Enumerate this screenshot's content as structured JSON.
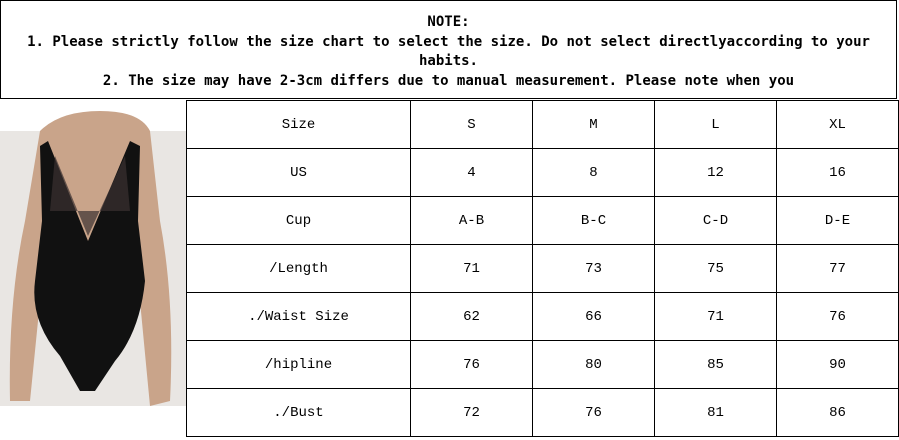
{
  "note": {
    "title": "NOTE:",
    "line1": "1. Please strictly follow the size chart to select the size. Do not select directlyaccording to your habits.",
    "line2": "2. The size may have 2-3cm differs due to manual measurement. Please note when you"
  },
  "table": {
    "rows": [
      {
        "label": "Size",
        "values": [
          "S",
          "M",
          "L",
          "XL"
        ]
      },
      {
        "label": "US",
        "values": [
          "4",
          "8",
          "12",
          "16"
        ]
      },
      {
        "label": "Cup",
        "values": [
          "A-B",
          "B-C",
          "C-D",
          "D-E"
        ]
      },
      {
        "label": "/Length",
        "values": [
          "71",
          "73",
          "75",
          "77"
        ]
      },
      {
        "label": "./Waist Size",
        "values": [
          "62",
          "66",
          "71",
          "76"
        ]
      },
      {
        "label": "/hipline",
        "values": [
          "76",
          "80",
          "85",
          "90"
        ]
      },
      {
        "label": "./Bust",
        "values": [
          "72",
          "76",
          "81",
          "86"
        ]
      }
    ]
  }
}
